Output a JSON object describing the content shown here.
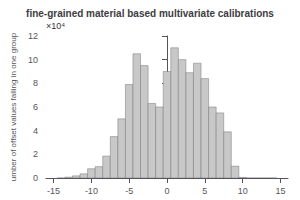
{
  "chart_data": {
    "type": "bar",
    "title": "fine-grained material based multivariate calibrations",
    "ylabel": "umber of offset values falling in one group",
    "x": [
      -14,
      -13,
      -12,
      -11,
      -10,
      -9,
      -8,
      -7,
      -6,
      -5,
      -4,
      -3,
      -2,
      -1,
      0,
      1,
      2,
      3,
      4,
      5,
      6,
      7,
      8,
      9,
      10,
      11,
      12,
      13,
      14
    ],
    "values": [
      0,
      0.07,
      0.18,
      0.35,
      0.78,
      0.96,
      1.85,
      3.5,
      5.0,
      7.9,
      10.5,
      9.5,
      6.3,
      6.0,
      9.0,
      11.0,
      10.0,
      8.9,
      9.7,
      8.4,
      6.0,
      5.5,
      3.9,
      1.0,
      0.05,
      0,
      0,
      0,
      0
    ],
    "color": "#c8c8c8",
    "xlim": [
      -16,
      16
    ],
    "xticks": [
      -15,
      -10,
      -5,
      0,
      5,
      10,
      15
    ],
    "ylim": [
      0,
      12
    ],
    "yticks": [
      0,
      2,
      4,
      6,
      8,
      10,
      12
    ],
    "grid": false,
    "annotations": [
      "×10⁴"
    ]
  }
}
